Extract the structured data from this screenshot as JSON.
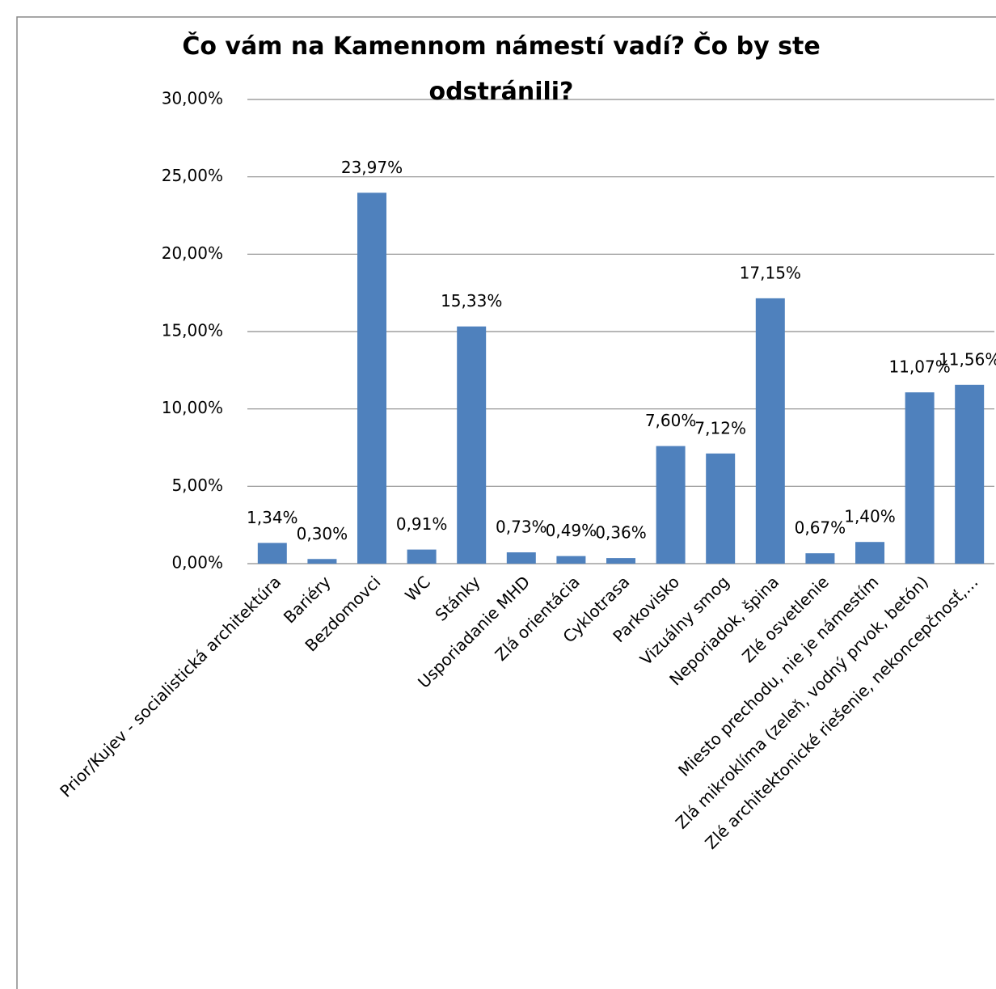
{
  "chart_data": {
    "type": "bar",
    "title": "Čo vám na Kamennom námestí vadí? Čo by ste odstránili?",
    "categories": [
      "Prior/Kujev - socialistická architektúra",
      "Bariéry",
      "Bezdomovci",
      "WC",
      "Stánky",
      "Usporiadanie MHD",
      "Zlá orientácia",
      "Cyklotrasa",
      "Parkovisko",
      "Vizuálny smog",
      "Neporiadok, špina",
      "Zlé osvetlenie",
      "Miesto prechodu, nie je námestím",
      "Zlá mikroklíma (zeleň, vodný prvok, betón)",
      "Zlé architektonické riešenie, nekoncepčnosť,…"
    ],
    "values": [
      1.34,
      0.3,
      23.97,
      0.91,
      15.33,
      0.73,
      0.49,
      0.36,
      7.6,
      7.12,
      17.15,
      0.67,
      1.4,
      11.07,
      11.56
    ],
    "value_labels": [
      "1,34%",
      "0,30%",
      "23,97%",
      "0,91%",
      "15,33%",
      "0,73%",
      "0,49%",
      "0,36%",
      "7,60%",
      "7,12%",
      "17,15%",
      "0,67%",
      "1,40%",
      "11,07%",
      "11,56%"
    ],
    "color": "#4f81bd",
    "ylim": [
      0,
      30
    ],
    "yticks": [
      {
        "value": 0,
        "label": "0,00%"
      },
      {
        "value": 5,
        "label": "5,00%"
      },
      {
        "value": 10,
        "label": "10,00%"
      },
      {
        "value": 15,
        "label": "15,00%"
      },
      {
        "value": 20,
        "label": "20,00%"
      },
      {
        "value": 25,
        "label": "25,00%"
      },
      {
        "value": 30,
        "label": "30,00%"
      }
    ],
    "grid": true
  }
}
